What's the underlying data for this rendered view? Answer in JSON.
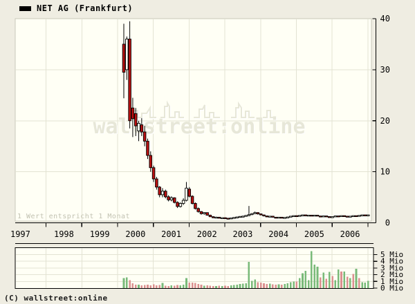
{
  "title": "NET AG (Frankfurt)",
  "note": "1 Wert entspricht 1 Monat",
  "copyright": "(C) wallstreet:online",
  "watermark": "wallstreet:online",
  "colors": {
    "pageBg": "#EFEDE2",
    "plotBg": "#FFFFF5",
    "plotBorder": "#C8C8BA",
    "grid": "#E3E3D3",
    "axis": "#000000",
    "candleUp": "#FFFFF5",
    "candleDown": "#BB1111",
    "candleOutline": "#000000",
    "volumeUp": "#79BA79",
    "volumeDown": "#DB9090",
    "noteText": "#C2C2B2",
    "watermark": "#E7E7D8"
  },
  "chart_data": {
    "type": "candlestick",
    "interval": "1 bar = 1 month",
    "start_month": "2000-03",
    "title": "NET AG (Frankfurt)",
    "x_years": [
      "1997",
      "1998",
      "1999",
      "2000",
      "2001",
      "2002",
      "2003",
      "2004",
      "2005",
      "2006"
    ],
    "price_ticks": [
      0,
      10,
      20,
      30,
      40
    ],
    "price_range": [
      0,
      40
    ],
    "volume_ticks": [
      "0 Mio",
      "1 Mio",
      "2 Mio",
      "3 Mio",
      "4 Mio",
      "5 Mio"
    ],
    "volume_range_mio": [
      0,
      6
    ],
    "grid": true,
    "legend_position": "top-left",
    "columns": [
      "open",
      "high",
      "low",
      "close",
      "volume_mio",
      "volume_color"
    ],
    "candles": [
      [
        35.0,
        39.0,
        24.4,
        29.5,
        1.5,
        "g"
      ],
      [
        30.0,
        36.5,
        28.0,
        36.0,
        1.6,
        "g"
      ],
      [
        36.0,
        39.5,
        18.5,
        20.0,
        1.2,
        "r"
      ],
      [
        22.5,
        24.5,
        16.8,
        20.4,
        0.7,
        "r"
      ],
      [
        21.4,
        22.5,
        17.0,
        19.0,
        0.5,
        "r"
      ],
      [
        18.0,
        20.0,
        16.0,
        19.5,
        0.5,
        "g"
      ],
      [
        19.2,
        20.5,
        17.0,
        17.8,
        0.4,
        "r"
      ],
      [
        17.8,
        19.0,
        15.0,
        16.0,
        0.45,
        "r"
      ],
      [
        16.0,
        16.5,
        12.5,
        13.2,
        0.5,
        "r"
      ],
      [
        13.2,
        14.0,
        10.0,
        10.8,
        0.4,
        "r"
      ],
      [
        10.8,
        11.2,
        8.0,
        8.6,
        0.55,
        "r"
      ],
      [
        8.6,
        9.0,
        6.5,
        7.0,
        0.4,
        "r"
      ],
      [
        7.0,
        7.2,
        5.0,
        5.5,
        0.45,
        "r"
      ],
      [
        5.5,
        6.8,
        5.0,
        6.2,
        0.75,
        "g"
      ],
      [
        6.2,
        6.5,
        4.8,
        5.1,
        0.35,
        "r"
      ],
      [
        5.1,
        5.4,
        4.2,
        4.5,
        0.3,
        "r"
      ],
      [
        4.5,
        5.2,
        4.2,
        4.9,
        0.4,
        "g"
      ],
      [
        4.9,
        5.0,
        3.8,
        4.0,
        0.35,
        "r"
      ],
      [
        4.0,
        4.2,
        2.9,
        3.2,
        0.45,
        "r"
      ],
      [
        3.2,
        4.0,
        3.0,
        3.8,
        0.4,
        "g"
      ],
      [
        3.8,
        4.8,
        3.5,
        4.4,
        0.5,
        "g"
      ],
      [
        4.4,
        8.0,
        4.2,
        6.8,
        1.5,
        "g"
      ],
      [
        6.6,
        7.0,
        5.0,
        5.2,
        0.85,
        "r"
      ],
      [
        5.2,
        5.4,
        3.6,
        3.8,
        0.8,
        "r"
      ],
      [
        3.8,
        4.0,
        2.6,
        2.8,
        0.75,
        "r"
      ],
      [
        2.8,
        3.0,
        2.0,
        2.2,
        0.6,
        "r"
      ],
      [
        2.2,
        2.3,
        1.6,
        1.8,
        0.5,
        "r"
      ],
      [
        1.8,
        2.1,
        1.6,
        2.0,
        0.35,
        "g"
      ],
      [
        2.0,
        2.0,
        1.4,
        1.5,
        0.4,
        "r"
      ],
      [
        1.5,
        1.6,
        1.1,
        1.2,
        0.35,
        "r"
      ],
      [
        1.2,
        1.3,
        0.9,
        1.0,
        0.3,
        "r"
      ],
      [
        1.0,
        1.2,
        0.9,
        1.1,
        0.3,
        "g"
      ],
      [
        1.1,
        1.15,
        0.85,
        0.9,
        0.35,
        "r"
      ],
      [
        0.9,
        1.05,
        0.85,
        1.0,
        0.3,
        "g"
      ],
      [
        1.0,
        1.05,
        0.8,
        0.9,
        0.35,
        "r"
      ],
      [
        0.9,
        0.95,
        0.75,
        0.85,
        0.3,
        "r"
      ],
      [
        0.85,
        1.0,
        0.8,
        0.95,
        0.4,
        "g"
      ],
      [
        0.95,
        1.1,
        0.9,
        1.05,
        0.45,
        "g"
      ],
      [
        1.05,
        1.2,
        1.0,
        1.15,
        0.5,
        "g"
      ],
      [
        1.15,
        1.3,
        1.05,
        1.25,
        0.6,
        "g"
      ],
      [
        1.25,
        1.4,
        1.15,
        1.3,
        0.65,
        "g"
      ],
      [
        1.3,
        1.5,
        1.2,
        1.45,
        0.7,
        "g"
      ],
      [
        1.45,
        3.3,
        1.3,
        1.6,
        3.9,
        "g"
      ],
      [
        1.6,
        1.9,
        1.5,
        1.8,
        1.1,
        "g"
      ],
      [
        1.8,
        2.2,
        1.7,
        2.0,
        1.3,
        "g"
      ],
      [
        2.0,
        2.1,
        1.6,
        1.75,
        0.9,
        "r"
      ],
      [
        1.75,
        1.8,
        1.45,
        1.55,
        0.8,
        "r"
      ],
      [
        1.55,
        1.6,
        1.25,
        1.35,
        0.7,
        "r"
      ],
      [
        1.35,
        1.4,
        1.1,
        1.2,
        0.6,
        "r"
      ],
      [
        1.2,
        1.35,
        1.15,
        1.3,
        0.65,
        "g"
      ],
      [
        1.3,
        1.3,
        1.05,
        1.1,
        0.55,
        "r"
      ],
      [
        1.1,
        1.15,
        0.95,
        1.0,
        0.5,
        "r"
      ],
      [
        1.0,
        1.15,
        0.95,
        1.1,
        0.55,
        "g"
      ],
      [
        1.1,
        1.1,
        0.9,
        0.95,
        0.5,
        "r"
      ],
      [
        0.95,
        1.1,
        0.9,
        1.05,
        0.6,
        "g"
      ],
      [
        1.05,
        1.2,
        1.0,
        1.15,
        0.7,
        "g"
      ],
      [
        1.15,
        1.35,
        1.1,
        1.3,
        0.9,
        "g"
      ],
      [
        1.3,
        1.45,
        1.25,
        1.4,
        1.0,
        "g"
      ],
      [
        1.4,
        1.45,
        1.2,
        1.28,
        1.0,
        "r"
      ],
      [
        1.28,
        1.5,
        1.22,
        1.45,
        1.5,
        "g"
      ],
      [
        1.45,
        1.62,
        1.38,
        1.55,
        2.2,
        "g"
      ],
      [
        1.55,
        1.6,
        1.3,
        1.38,
        2.6,
        "g"
      ],
      [
        1.38,
        1.55,
        1.3,
        1.5,
        1.2,
        "g"
      ],
      [
        1.5,
        1.55,
        1.3,
        1.38,
        5.5,
        "g"
      ],
      [
        1.38,
        1.55,
        1.32,
        1.5,
        3.5,
        "g"
      ],
      [
        1.5,
        1.52,
        1.28,
        1.33,
        3.2,
        "g"
      ],
      [
        1.33,
        1.4,
        1.15,
        1.22,
        1.6,
        "r"
      ],
      [
        1.22,
        1.4,
        1.18,
        1.35,
        2.3,
        "g"
      ],
      [
        1.35,
        1.38,
        1.15,
        1.22,
        1.4,
        "r"
      ],
      [
        1.22,
        1.25,
        1.0,
        1.08,
        2.4,
        "g"
      ],
      [
        1.08,
        1.25,
        1.05,
        1.2,
        1.8,
        "r"
      ],
      [
        1.2,
        1.4,
        1.15,
        1.35,
        1.2,
        "g"
      ],
      [
        1.35,
        1.38,
        1.18,
        1.25,
        2.8,
        "g"
      ],
      [
        1.25,
        1.45,
        1.2,
        1.4,
        2.5,
        "r"
      ],
      [
        1.4,
        1.42,
        1.22,
        1.3,
        2.5,
        "g"
      ],
      [
        1.3,
        1.32,
        1.1,
        1.2,
        1.7,
        "r"
      ],
      [
        1.2,
        1.35,
        1.15,
        1.3,
        1.5,
        "g"
      ],
      [
        1.3,
        1.45,
        1.25,
        1.4,
        2.1,
        "r"
      ],
      [
        1.4,
        1.42,
        1.22,
        1.3,
        2.9,
        "g"
      ],
      [
        1.3,
        1.5,
        1.25,
        1.45,
        1.5,
        "r"
      ],
      [
        1.45,
        1.6,
        1.4,
        1.55,
        0.9,
        "g"
      ],
      [
        1.55,
        1.58,
        1.4,
        1.48,
        0.8,
        "g"
      ],
      [
        1.48,
        1.6,
        1.42,
        1.55,
        1.1,
        "g"
      ]
    ]
  }
}
